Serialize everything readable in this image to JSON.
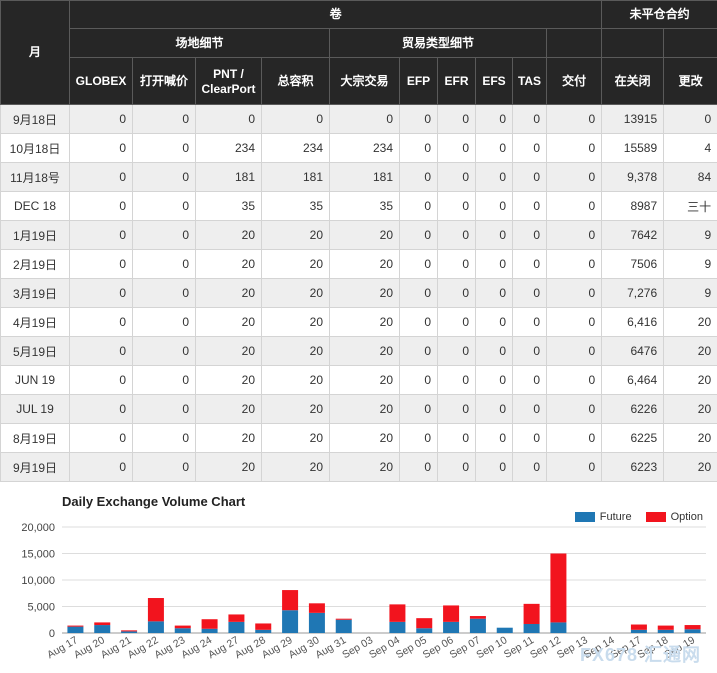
{
  "headers": {
    "month": "月",
    "volume": "卷",
    "open_interest": "未平仓合约",
    "venue": "场地细节",
    "trade_type": "贸易类型细节",
    "cols": [
      "GLOBEX",
      "打开喊价",
      "PNT / ClearPort",
      "总容积",
      "大宗交易",
      "EFP",
      "EFR",
      "EFS",
      "TAS",
      "交付",
      "在关闭",
      "更改"
    ]
  },
  "rows": [
    [
      "9月18日",
      "0",
      "0",
      "0",
      "0",
      "0",
      "0",
      "0",
      "0",
      "0",
      "0",
      "13915",
      "0"
    ],
    [
      "10月18日",
      "0",
      "0",
      "234",
      "234",
      "234",
      "0",
      "0",
      "0",
      "0",
      "0",
      "15589",
      "4"
    ],
    [
      "11月18号",
      "0",
      "0",
      "181",
      "181",
      "181",
      "0",
      "0",
      "0",
      "0",
      "0",
      "9,378",
      "84"
    ],
    [
      "DEC 18",
      "0",
      "0",
      "35",
      "35",
      "35",
      "0",
      "0",
      "0",
      "0",
      "0",
      "8987",
      "三十"
    ],
    [
      "1月19日",
      "0",
      "0",
      "20",
      "20",
      "20",
      "0",
      "0",
      "0",
      "0",
      "0",
      "7642",
      "9"
    ],
    [
      "2月19日",
      "0",
      "0",
      "20",
      "20",
      "20",
      "0",
      "0",
      "0",
      "0",
      "0",
      "7506",
      "9"
    ],
    [
      "3月19日",
      "0",
      "0",
      "20",
      "20",
      "20",
      "0",
      "0",
      "0",
      "0",
      "0",
      "7,276",
      "9"
    ],
    [
      "4月19日",
      "0",
      "0",
      "20",
      "20",
      "20",
      "0",
      "0",
      "0",
      "0",
      "0",
      "6,416",
      "20"
    ],
    [
      "5月19日",
      "0",
      "0",
      "20",
      "20",
      "20",
      "0",
      "0",
      "0",
      "0",
      "0",
      "6476",
      "20"
    ],
    [
      "JUN 19",
      "0",
      "0",
      "20",
      "20",
      "20",
      "0",
      "0",
      "0",
      "0",
      "0",
      "6,464",
      "20"
    ],
    [
      "JUL 19",
      "0",
      "0",
      "20",
      "20",
      "20",
      "0",
      "0",
      "0",
      "0",
      "0",
      "6226",
      "20"
    ],
    [
      "8月19日",
      "0",
      "0",
      "20",
      "20",
      "20",
      "0",
      "0",
      "0",
      "0",
      "0",
      "6225",
      "20"
    ],
    [
      "9月19日",
      "0",
      "0",
      "20",
      "20",
      "20",
      "0",
      "0",
      "0",
      "0",
      "0",
      "6223",
      "20"
    ]
  ],
  "chart_data": {
    "type": "bar",
    "stacked": true,
    "title": "Daily Exchange Volume Chart",
    "xlabel": "",
    "ylabel": "",
    "ylim": [
      0,
      20000
    ],
    "yticks": [
      "0",
      "5,000",
      "10,000",
      "15,000",
      "20,000"
    ],
    "grid": true,
    "legend_position": "top-right",
    "categories": [
      "Aug 17",
      "Aug 20",
      "Aug 21",
      "Aug 22",
      "Aug 23",
      "Aug 24",
      "Aug 27",
      "Aug 28",
      "Aug 29",
      "Aug 30",
      "Aug 31",
      "Sep 03",
      "Sep 04",
      "Sep 05",
      "Sep 06",
      "Sep 07",
      "Sep 10",
      "Sep 11",
      "Sep 12",
      "Sep 13",
      "Sep 14",
      "Sep 17",
      "Sep 18",
      "Sep 19"
    ],
    "series": [
      {
        "name": "Future",
        "color": "#1f77b4",
        "values": [
          1200,
          1500,
          300,
          2200,
          900,
          800,
          2100,
          600,
          4300,
          3800,
          2500,
          0,
          2100,
          900,
          2100,
          2700,
          1000,
          1700,
          2000,
          0,
          0,
          600,
          600,
          700
        ]
      },
      {
        "name": "Option",
        "color": "#f2141e",
        "values": [
          200,
          500,
          200,
          4400,
          500,
          1800,
          1400,
          1200,
          3800,
          1800,
          200,
          0,
          3300,
          1900,
          3100,
          500,
          0,
          3800,
          13000,
          0,
          0,
          1000,
          800,
          800
        ]
      }
    ]
  },
  "watermark": "FX678 汇通网"
}
